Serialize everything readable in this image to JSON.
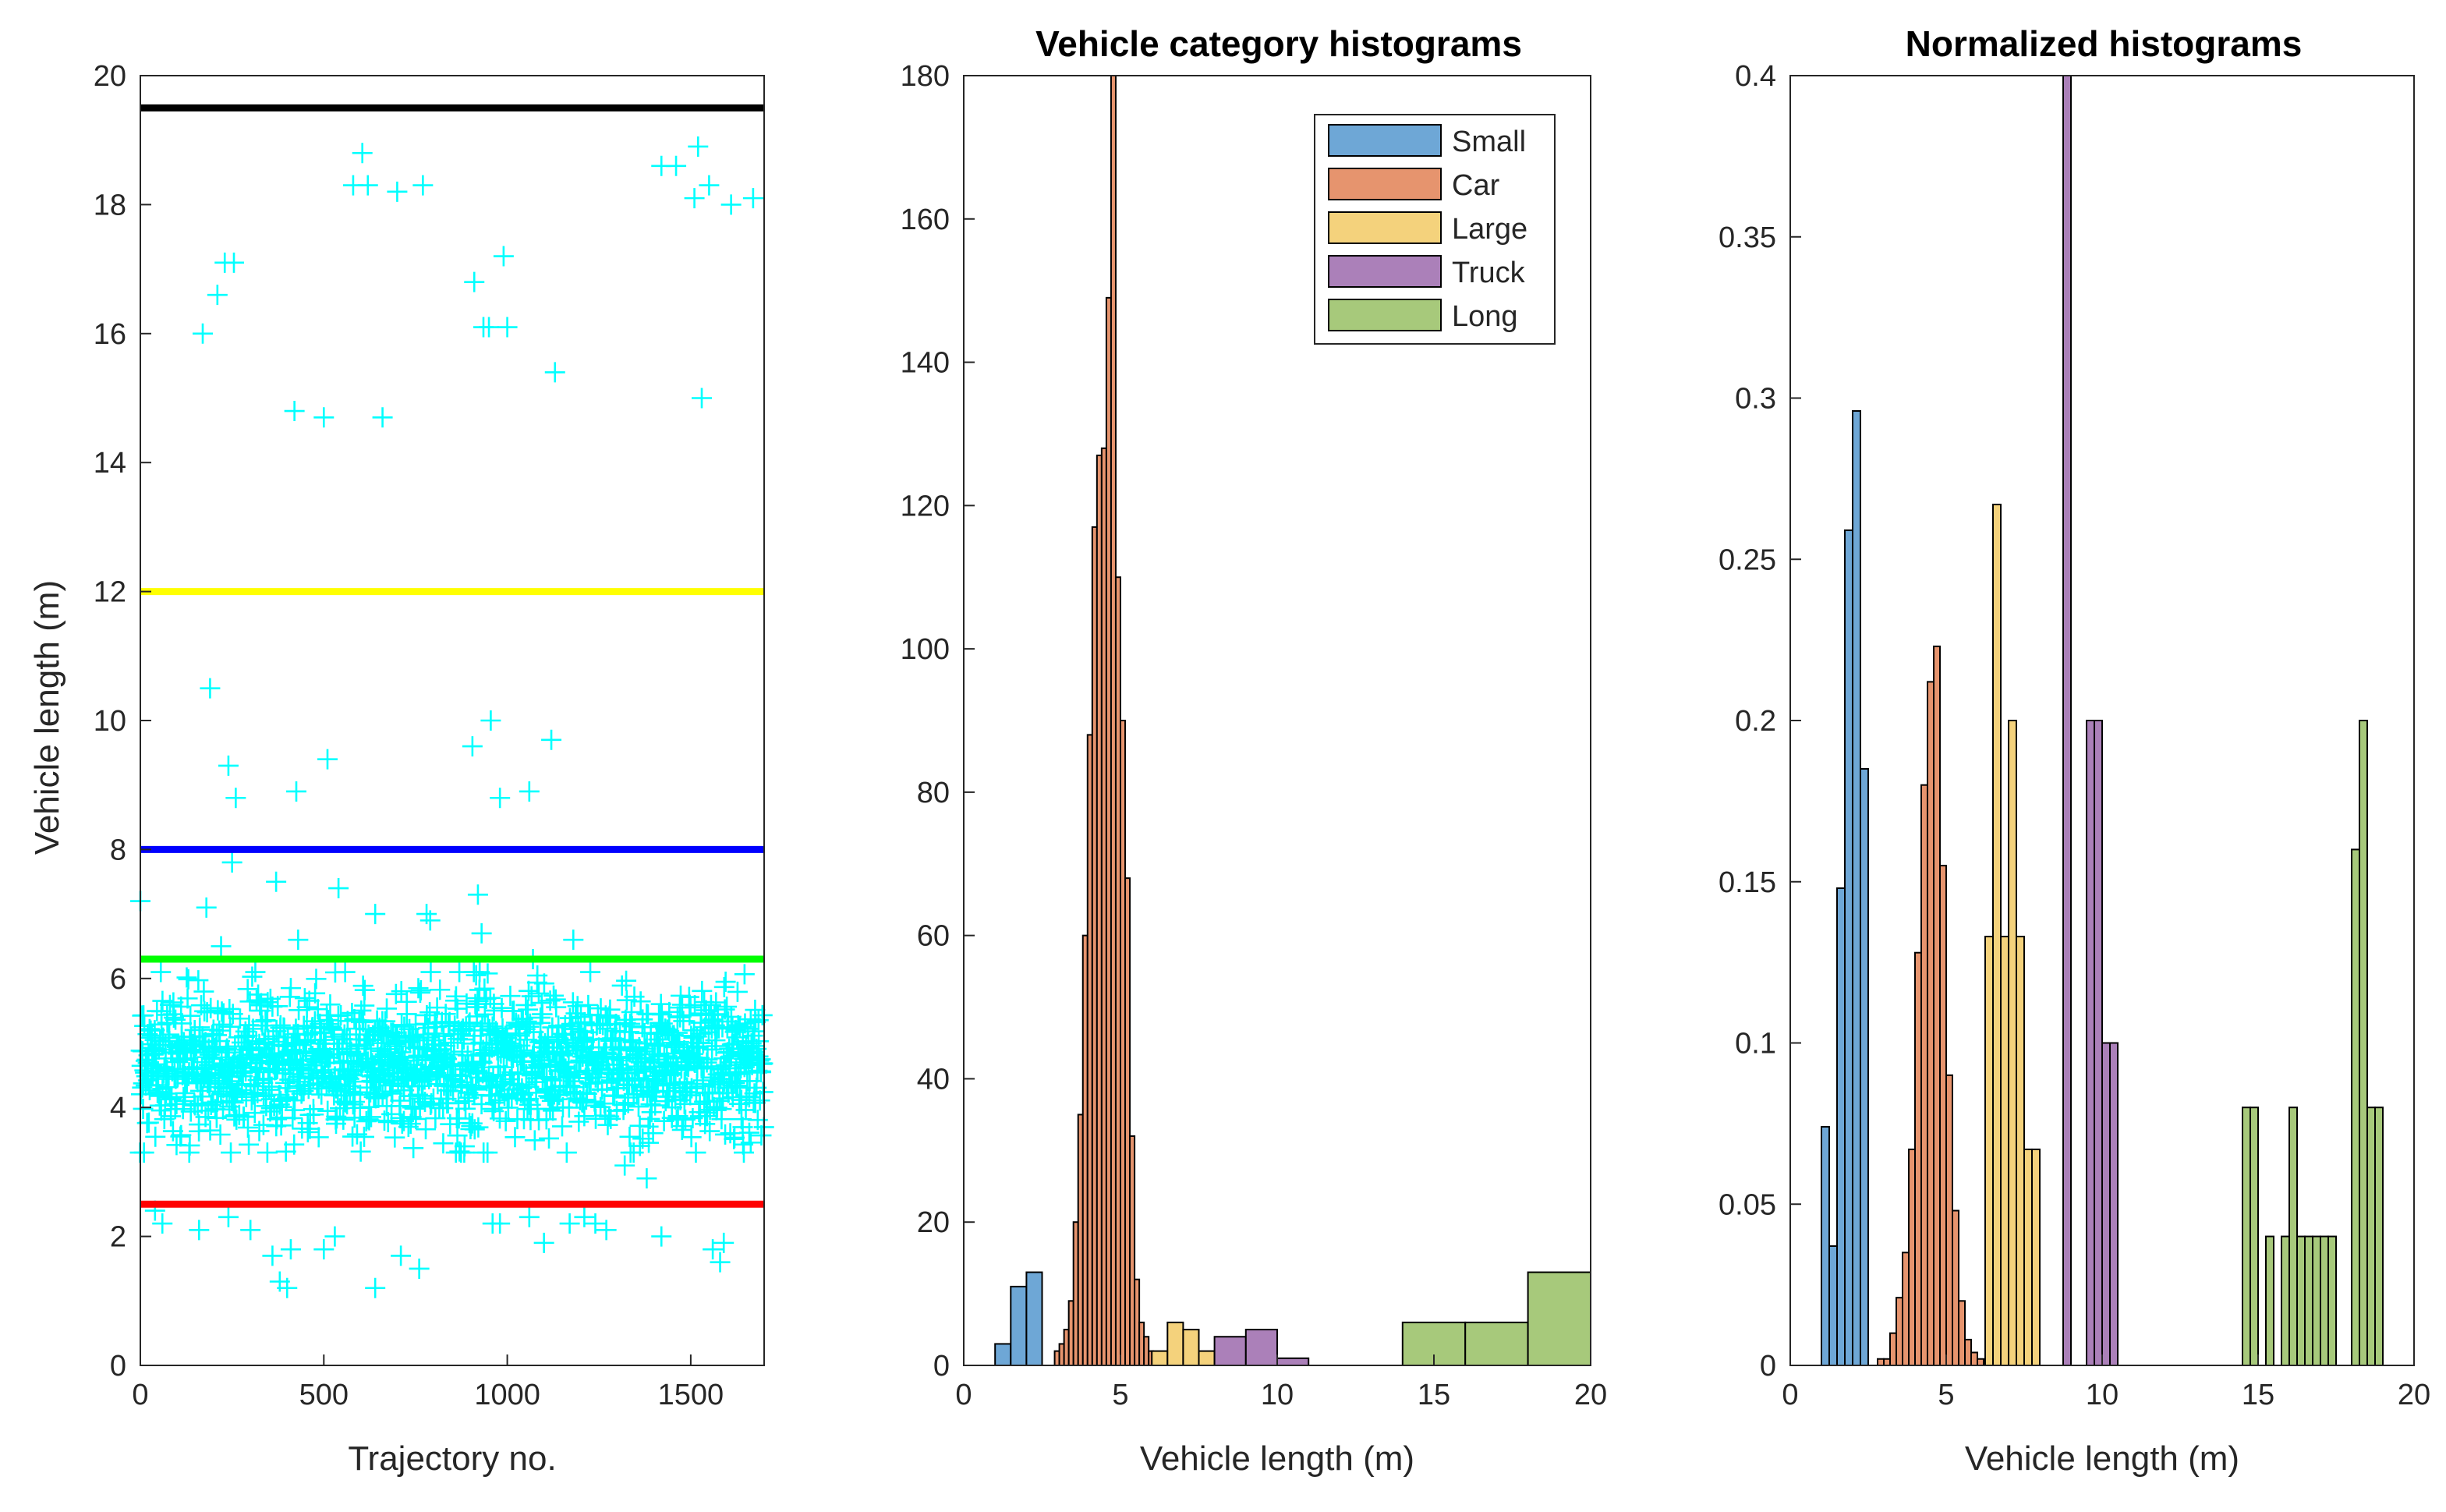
{
  "chart_data": [
    {
      "type": "scatter",
      "title": "",
      "xlabel": "Trajectory no.",
      "ylabel": "Vehicle length (m)",
      "xlim": [
        0,
        1700
      ],
      "ylim": [
        0,
        20
      ],
      "xticks": [
        0,
        500,
        1000,
        1500
      ],
      "yticks": [
        0,
        2,
        4,
        6,
        8,
        10,
        12,
        14,
        16,
        18,
        20
      ],
      "marker": "+",
      "marker_color": "#00ffff",
      "threshold_lines": [
        {
          "y": 19.5,
          "color": "#000000"
        },
        {
          "y": 12,
          "color": "#ffff00"
        },
        {
          "y": 8,
          "color": "#0000ff"
        },
        {
          "y": 6.3,
          "color": "#00ff00"
        },
        {
          "y": 2.5,
          "color": "#ff0000"
        }
      ],
      "dense_band": {
        "count": 1650,
        "mean": 4.7,
        "sd": 0.55,
        "x_range": [
          0,
          1700
        ]
      },
      "outlier_points": {
        "x": [
          170,
          210,
          230,
          255,
          420,
          500,
          580,
          605,
          620,
          660,
          700,
          770,
          910,
          935,
          950,
          990,
          1000,
          1130,
          1420,
          1460,
          1510,
          1520,
          1530,
          1550,
          1610,
          1670,
          190,
          240,
          260,
          425,
          510,
          905,
          955,
          980,
          1060,
          1120,
          0,
          180,
          220,
          250,
          370,
          430,
          540,
          640,
          790,
          780,
          920,
          930,
          1070,
          1180,
          40,
          60,
          160,
          240,
          300,
          360,
          380,
          400,
          410,
          500,
          530,
          640,
          710,
          760,
          960,
          980,
          1060,
          1100,
          1170,
          1210,
          1240,
          1270,
          1320,
          1380,
          1420,
          1560,
          1580,
          1590
        ],
        "y": [
          16,
          16.6,
          17.1,
          17.1,
          14.8,
          14.7,
          18.3,
          18.8,
          18.3,
          14.7,
          18.2,
          18.3,
          16.8,
          16.1,
          16.1,
          17.2,
          16.1,
          15.4,
          18.6,
          18.6,
          18.1,
          18.9,
          15,
          18.3,
          18,
          18.1,
          10.5,
          9.3,
          8.8,
          8.9,
          9.4,
          9.6,
          10,
          8.8,
          8.9,
          9.7,
          7.2,
          7.1,
          6.5,
          7.8,
          7.5,
          6.6,
          7.4,
          7,
          6.9,
          7,
          7.3,
          6.7,
          6.3,
          6.6,
          2.4,
          2.2,
          2.1,
          2.3,
          2.1,
          1.7,
          1.3,
          1.2,
          1.8,
          1.8,
          2,
          1.2,
          1.7,
          1.5,
          2.2,
          2.2,
          2.3,
          1.9,
          2.2,
          2.3,
          2.2,
          2.1,
          3.1,
          2.9,
          2,
          1.8,
          1.6,
          1.9
        ]
      }
    },
    {
      "type": "bar",
      "title": "Vehicle category histograms",
      "xlabel": "Vehicle length (m)",
      "ylabel": "",
      "xlim": [
        0,
        20
      ],
      "ylim": [
        0,
        180
      ],
      "xticks": [
        0,
        5,
        10,
        15,
        20
      ],
      "yticks": [
        0,
        20,
        40,
        60,
        80,
        100,
        120,
        140,
        160,
        180
      ],
      "legend": {
        "location": "top-right",
        "entries": [
          "Small",
          "Car",
          "Large",
          "Truck",
          "Long"
        ]
      },
      "series": [
        {
          "name": "Small",
          "color": "#6ea7d6",
          "bin_edges": [
            1.0,
            1.5,
            2.0,
            2.5
          ],
          "values": [
            3,
            11,
            13
          ]
        },
        {
          "name": "Car",
          "color": "#e6946e",
          "bin_edges": [
            2.9,
            3.05,
            3.2,
            3.35,
            3.5,
            3.65,
            3.8,
            3.95,
            4.1,
            4.25,
            4.4,
            4.55,
            4.7,
            4.85,
            5.0,
            5.15,
            5.3,
            5.45,
            5.6,
            5.75,
            5.9,
            6.05,
            6.2
          ],
          "values": [
            2,
            3,
            5,
            9,
            20,
            35,
            60,
            88,
            117,
            127,
            128,
            149,
            180,
            110,
            90,
            68,
            32,
            12,
            6,
            4,
            2,
            1
          ]
        },
        {
          "name": "Large",
          "color": "#f4d27c",
          "bin_edges": [
            6.0,
            6.5,
            7.0,
            7.5,
            8.0
          ],
          "values": [
            2,
            6,
            5,
            2
          ]
        },
        {
          "name": "Truck",
          "color": "#ab80b9",
          "bin_edges": [
            8.0,
            9.0,
            10.0,
            11.0
          ],
          "values": [
            4,
            5,
            1
          ]
        },
        {
          "name": "Long",
          "color": "#a7c97b",
          "bin_edges": [
            14.0,
            16.0,
            18.0,
            20.0
          ],
          "values": [
            6,
            6,
            13
          ]
        }
      ]
    },
    {
      "type": "bar",
      "title": "Normalized histograms",
      "xlabel": "Vehicle length (m)",
      "ylabel": "",
      "xlim": [
        0,
        20
      ],
      "ylim": [
        0,
        0.4
      ],
      "xticks": [
        0,
        5,
        10,
        15,
        20
      ],
      "yticks": [
        0,
        0.05,
        0.1,
        0.15,
        0.2,
        0.25,
        0.3,
        0.35,
        0.4
      ],
      "series": [
        {
          "name": "Small",
          "color": "#6ea7d6",
          "bin_edges": [
            1.0,
            1.25,
            1.5,
            1.75,
            2.0,
            2.25,
            2.5
          ],
          "values": [
            0.074,
            0.037,
            0.148,
            0.259,
            0.296,
            0.185
          ]
        },
        {
          "name": "Car",
          "color": "#e6946e",
          "bin_edges": [
            2.8,
            3.0,
            3.2,
            3.4,
            3.6,
            3.8,
            4.0,
            4.2,
            4.4,
            4.6,
            4.8,
            5.0,
            5.2,
            5.4,
            5.6,
            5.8,
            6.0,
            6.2
          ],
          "values": [
            0.002,
            0.002,
            0.01,
            0.021,
            0.035,
            0.067,
            0.128,
            0.18,
            0.212,
            0.223,
            0.155,
            0.09,
            0.048,
            0.02,
            0.008,
            0.004,
            0.002
          ]
        },
        {
          "name": "Large",
          "color": "#f4d27c",
          "bin_edges": [
            6.25,
            6.5,
            6.75,
            7.0,
            7.25,
            7.5,
            7.75,
            8.0
          ],
          "values": [
            0.133,
            0.267,
            0.133,
            0.2,
            0.133,
            0.067,
            0.067
          ]
        },
        {
          "name": "Truck",
          "color": "#ab80b9",
          "bin_edges": [
            8.75,
            9.0,
            9.25,
            9.5,
            9.75,
            10.0,
            10.25,
            10.5
          ],
          "values": [
            0.4,
            0,
            0,
            0.2,
            0.2,
            0.1,
            0.1
          ]
        },
        {
          "name": "Long",
          "color": "#a7c97b",
          "bin_edges": [
            14.5,
            14.75,
            15.0,
            15.25,
            15.5,
            15.75,
            16.0,
            16.25,
            16.5,
            16.75,
            17.0,
            17.25,
            17.5,
            17.75,
            18.0,
            18.25,
            18.5,
            18.75,
            19.0
          ],
          "values": [
            0.08,
            0.08,
            0,
            0.04,
            0,
            0.04,
            0.08,
            0.04,
            0.04,
            0.04,
            0.04,
            0.04,
            0,
            0,
            0.16,
            0.2,
            0.08,
            0.08
          ]
        }
      ]
    }
  ]
}
